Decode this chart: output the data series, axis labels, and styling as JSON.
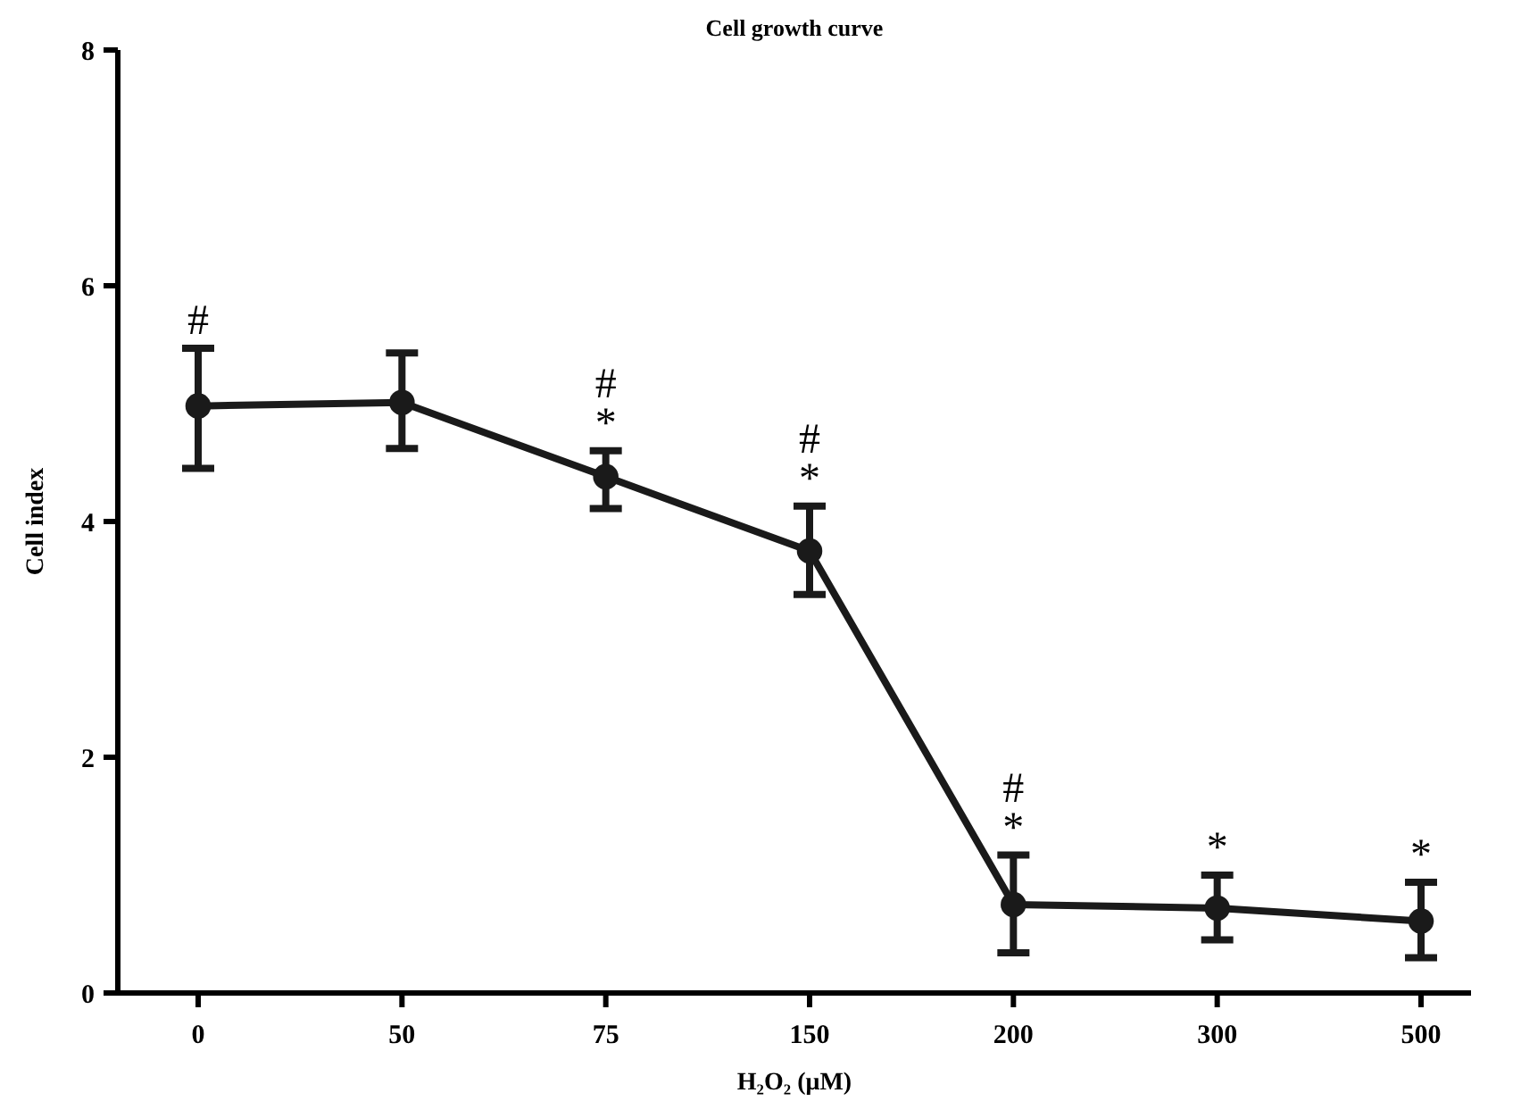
{
  "chart_data": {
    "type": "line",
    "title": "Cell growth curve",
    "xlabel": "H₂O₂ (μM)",
    "ylabel": "Cell index",
    "categories": [
      "0",
      "50",
      "75",
      "150",
      "200",
      "300",
      "500"
    ],
    "series": [
      {
        "color": "#1a1a1a",
        "values": [
          4.98,
          5.01,
          4.38,
          3.75,
          0.75,
          0.72,
          0.61
        ],
        "errors": [
          [
            4.45,
            5.47
          ],
          [
            4.62,
            5.43
          ],
          [
            4.11,
            4.6
          ],
          [
            3.38,
            4.13
          ],
          [
            0.34,
            1.17
          ],
          [
            0.45,
            1.0
          ],
          [
            0.3,
            0.94
          ]
        ]
      }
    ],
    "ylim": [
      0,
      8
    ],
    "yticks": [
      0,
      2,
      4,
      6,
      8
    ],
    "grid": false,
    "marker": "circle",
    "line_style": "solid",
    "annotations": [
      {
        "text": "#",
        "x": "0",
        "y": 4.98
      },
      {
        "text": "#",
        "x": "75",
        "y": 4.38
      },
      {
        "text": "*",
        "x": "75",
        "y": 4.38
      },
      {
        "text": "#",
        "x": "150",
        "y": 3.75
      },
      {
        "text": "*",
        "x": "150",
        "y": 3.75
      },
      {
        "text": "#",
        "x": "200",
        "y": 0.75
      },
      {
        "text": "*",
        "x": "200",
        "y": 0.75
      },
      {
        "text": "*",
        "x": "300",
        "y": 0.72
      },
      {
        "text": "*",
        "x": "500",
        "y": 0.61
      }
    ]
  }
}
